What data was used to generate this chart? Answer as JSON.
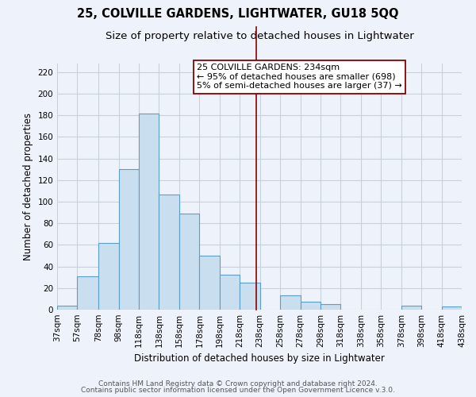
{
  "title": "25, COLVILLE GARDENS, LIGHTWATER, GU18 5QQ",
  "subtitle": "Size of property relative to detached houses in Lightwater",
  "xlabel": "Distribution of detached houses by size in Lightwater",
  "ylabel": "Number of detached properties",
  "bin_edges": [
    37,
    57,
    78,
    98,
    118,
    138,
    158,
    178,
    198,
    218,
    238,
    258,
    278,
    298,
    318,
    338,
    358,
    378,
    398,
    418,
    438
  ],
  "bin_labels": [
    "37sqm",
    "57sqm",
    "78sqm",
    "98sqm",
    "118sqm",
    "138sqm",
    "158sqm",
    "178sqm",
    "198sqm",
    "218sqm",
    "238sqm",
    "258sqm",
    "278sqm",
    "298sqm",
    "318sqm",
    "338sqm",
    "358sqm",
    "378sqm",
    "398sqm",
    "418sqm",
    "438sqm"
  ],
  "counts": [
    4,
    31,
    62,
    130,
    182,
    107,
    89,
    50,
    32,
    25,
    0,
    13,
    7,
    5,
    0,
    0,
    0,
    4,
    0,
    3,
    0
  ],
  "bar_color": "#c9dff0",
  "bar_edge_color": "#5a9ec9",
  "bg_color": "#eef2fb",
  "vline_x": 234,
  "vline_color": "#8b0000",
  "ylim": [
    0,
    228
  ],
  "yticks": [
    0,
    20,
    40,
    60,
    80,
    100,
    120,
    140,
    160,
    180,
    200,
    220
  ],
  "annotation_title": "25 COLVILLE GARDENS: 234sqm",
  "annotation_line1": "← 95% of detached houses are smaller (698)",
  "annotation_line2": "5% of semi-detached houses are larger (37) →",
  "footer1": "Contains HM Land Registry data © Crown copyright and database right 2024.",
  "footer2": "Contains public sector information licensed under the Open Government Licence v.3.0.",
  "title_fontsize": 10.5,
  "subtitle_fontsize": 9.5,
  "axis_label_fontsize": 8.5,
  "tick_fontsize": 7.5,
  "annotation_fontsize": 8,
  "footer_fontsize": 6.5
}
